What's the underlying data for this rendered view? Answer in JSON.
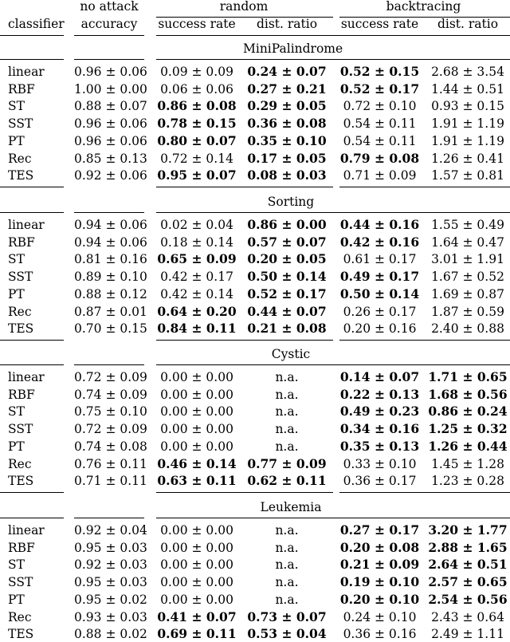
{
  "header": {
    "group_no_attack": "no attack",
    "group_random": "random",
    "group_backtracing": "backtracing",
    "col_classifier": "classifier",
    "col_accuracy": "accuracy",
    "col_success_rate": "success rate",
    "col_dist_ratio": "dist. ratio"
  },
  "sections": [
    {
      "title": "MiniPalindrome",
      "rows": [
        {
          "c": "linear",
          "v": [
            "0.96 ± 0.06",
            "0.09 ± 0.09",
            "0.24 ± 0.07",
            "0.52 ± 0.15",
            "2.68 ± 3.54"
          ],
          "b": [
            0,
            0,
            1,
            1,
            0
          ]
        },
        {
          "c": "RBF",
          "v": [
            "1.00 ± 0.00",
            "0.06 ± 0.06",
            "0.27 ± 0.21",
            "0.52 ± 0.17",
            "1.44 ± 0.51"
          ],
          "b": [
            0,
            0,
            1,
            1,
            0
          ]
        },
        {
          "c": "ST",
          "v": [
            "0.88 ± 0.07",
            "0.86 ± 0.08",
            "0.29 ± 0.05",
            "0.72 ± 0.10",
            "0.93 ± 0.15"
          ],
          "b": [
            0,
            1,
            1,
            0,
            0
          ]
        },
        {
          "c": "SST",
          "v": [
            "0.96 ± 0.06",
            "0.78 ± 0.15",
            "0.36 ± 0.08",
            "0.54 ± 0.11",
            "1.91 ± 1.19"
          ],
          "b": [
            0,
            1,
            1,
            0,
            0
          ]
        },
        {
          "c": "PT",
          "v": [
            "0.96 ± 0.06",
            "0.80 ± 0.07",
            "0.35 ± 0.10",
            "0.54 ± 0.11",
            "1.91 ± 1.19"
          ],
          "b": [
            0,
            1,
            1,
            0,
            0
          ]
        },
        {
          "c": "Rec",
          "v": [
            "0.85 ± 0.13",
            "0.72 ± 0.14",
            "0.17 ± 0.05",
            "0.79 ± 0.08",
            "1.26 ± 0.41"
          ],
          "b": [
            0,
            0,
            1,
            1,
            0
          ]
        },
        {
          "c": "TES",
          "v": [
            "0.92 ± 0.06",
            "0.95 ± 0.07",
            "0.08 ± 0.03",
            "0.71 ± 0.09",
            "1.57 ± 0.81"
          ],
          "b": [
            0,
            1,
            1,
            0,
            0
          ]
        }
      ]
    },
    {
      "title": "Sorting",
      "rows": [
        {
          "c": "linear",
          "v": [
            "0.94 ± 0.06",
            "0.02 ± 0.04",
            "0.86 ± 0.00",
            "0.44 ± 0.16",
            "1.55 ± 0.49"
          ],
          "b": [
            0,
            0,
            1,
            1,
            0
          ]
        },
        {
          "c": "RBF",
          "v": [
            "0.94 ± 0.06",
            "0.18 ± 0.14",
            "0.57 ± 0.07",
            "0.42 ± 0.16",
            "1.64 ± 0.47"
          ],
          "b": [
            0,
            0,
            1,
            1,
            0
          ]
        },
        {
          "c": "ST",
          "v": [
            "0.81 ± 0.16",
            "0.65 ± 0.09",
            "0.20 ± 0.05",
            "0.61 ± 0.17",
            "3.01 ± 1.91"
          ],
          "b": [
            0,
            1,
            1,
            0,
            0
          ]
        },
        {
          "c": "SST",
          "v": [
            "0.89 ± 0.10",
            "0.42 ± 0.17",
            "0.50 ± 0.14",
            "0.49 ± 0.17",
            "1.67 ± 0.52"
          ],
          "b": [
            0,
            0,
            1,
            1,
            0
          ]
        },
        {
          "c": "PT",
          "v": [
            "0.88 ± 0.12",
            "0.42 ± 0.14",
            "0.52 ± 0.17",
            "0.50 ± 0.14",
            "1.69 ± 0.87"
          ],
          "b": [
            0,
            0,
            1,
            1,
            0
          ]
        },
        {
          "c": "Rec",
          "v": [
            "0.87 ± 0.01",
            "0.64 ± 0.20",
            "0.44 ± 0.07",
            "0.26 ± 0.17",
            "1.87 ± 0.59"
          ],
          "b": [
            0,
            1,
            1,
            0,
            0
          ]
        },
        {
          "c": "TES",
          "v": [
            "0.70 ± 0.15",
            "0.84 ± 0.11",
            "0.21 ± 0.08",
            "0.20 ± 0.16",
            "2.40 ± 0.88"
          ],
          "b": [
            0,
            1,
            1,
            0,
            0
          ]
        }
      ]
    },
    {
      "title": "Cystic",
      "rows": [
        {
          "c": "linear",
          "v": [
            "0.72 ± 0.09",
            "0.00 ± 0.00",
            "n.a.",
            "0.14 ± 0.07",
            "1.71 ± 0.65"
          ],
          "b": [
            0,
            0,
            0,
            1,
            1
          ]
        },
        {
          "c": "RBF",
          "v": [
            "0.74 ± 0.09",
            "0.00 ± 0.00",
            "n.a.",
            "0.22 ± 0.13",
            "1.68 ± 0.56"
          ],
          "b": [
            0,
            0,
            0,
            1,
            1
          ]
        },
        {
          "c": "ST",
          "v": [
            "0.75 ± 0.10",
            "0.00 ± 0.00",
            "n.a.",
            "0.49 ± 0.23",
            "0.86 ± 0.24"
          ],
          "b": [
            0,
            0,
            0,
            1,
            1
          ]
        },
        {
          "c": "SST",
          "v": [
            "0.72 ± 0.09",
            "0.00 ± 0.00",
            "n.a.",
            "0.34 ± 0.16",
            "1.25 ± 0.32"
          ],
          "b": [
            0,
            0,
            0,
            1,
            1
          ]
        },
        {
          "c": "PT",
          "v": [
            "0.74 ± 0.08",
            "0.00 ± 0.00",
            "n.a.",
            "0.35 ± 0.13",
            "1.26 ± 0.44"
          ],
          "b": [
            0,
            0,
            0,
            1,
            1
          ]
        },
        {
          "c": "Rec",
          "v": [
            "0.76 ± 0.11",
            "0.46 ± 0.14",
            "0.77 ± 0.09",
            "0.33 ± 0.10",
            "1.45 ± 1.28"
          ],
          "b": [
            0,
            1,
            1,
            0,
            0
          ]
        },
        {
          "c": "TES",
          "v": [
            "0.71 ± 0.11",
            "0.63 ± 0.11",
            "0.62 ± 0.11",
            "0.36 ± 0.17",
            "1.23 ± 0.28"
          ],
          "b": [
            0,
            1,
            1,
            0,
            0
          ]
        }
      ]
    },
    {
      "title": "Leukemia",
      "rows": [
        {
          "c": "linear",
          "v": [
            "0.92 ± 0.04",
            "0.00 ± 0.00",
            "n.a.",
            "0.27 ± 0.17",
            "3.20 ± 1.77"
          ],
          "b": [
            0,
            0,
            0,
            1,
            1
          ]
        },
        {
          "c": "RBF",
          "v": [
            "0.95 ± 0.03",
            "0.00 ± 0.00",
            "n.a.",
            "0.20 ± 0.08",
            "2.88 ± 1.65"
          ],
          "b": [
            0,
            0,
            0,
            1,
            1
          ]
        },
        {
          "c": "ST",
          "v": [
            "0.92 ± 0.03",
            "0.00 ± 0.00",
            "n.a.",
            "0.21 ± 0.09",
            "2.64 ± 0.51"
          ],
          "b": [
            0,
            0,
            0,
            1,
            1
          ]
        },
        {
          "c": "SST",
          "v": [
            "0.95 ± 0.03",
            "0.00 ± 0.00",
            "n.a.",
            "0.19 ± 0.10",
            "2.57 ± 0.65"
          ],
          "b": [
            0,
            0,
            0,
            1,
            1
          ]
        },
        {
          "c": "PT",
          "v": [
            "0.95 ± 0.02",
            "0.00 ± 0.00",
            "n.a.",
            "0.20 ± 0.10",
            "2.54 ± 0.56"
          ],
          "b": [
            0,
            0,
            0,
            1,
            1
          ]
        },
        {
          "c": "Rec",
          "v": [
            "0.93 ± 0.03",
            "0.41 ± 0.07",
            "0.73 ± 0.07",
            "0.24 ± 0.10",
            "2.43 ± 0.64"
          ],
          "b": [
            0,
            1,
            1,
            0,
            0
          ]
        },
        {
          "c": "TES",
          "v": [
            "0.88 ± 0.02",
            "0.69 ± 0.11",
            "0.53 ± 0.04",
            "0.36 ± 0.16",
            "2.49 ± 1.11"
          ],
          "b": [
            0,
            1,
            1,
            0,
            0
          ]
        }
      ]
    }
  ]
}
